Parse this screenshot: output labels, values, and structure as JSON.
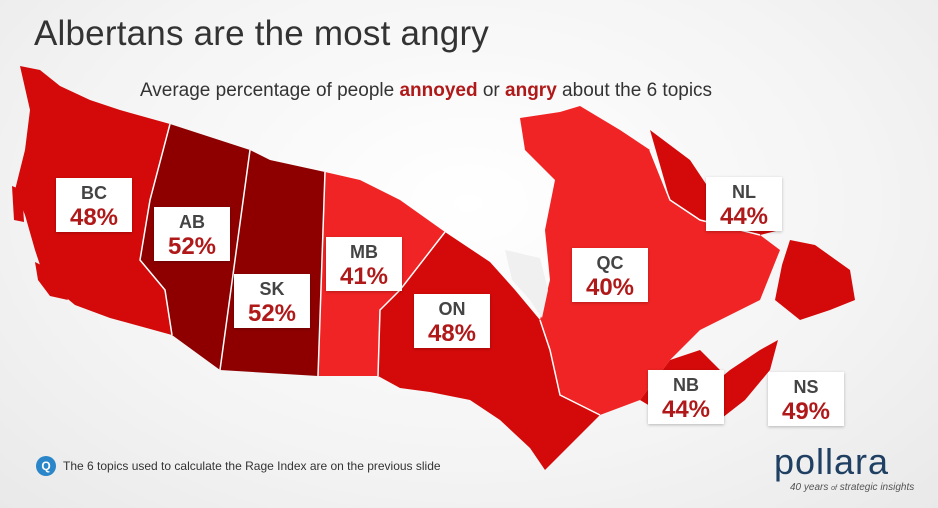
{
  "title": "Albertans are the most angry",
  "subtitle": {
    "prefix": "Average percentage of people ",
    "word1": "annoyed",
    "mid": " or ",
    "word2": "angry",
    "suffix": " about the 6 topics"
  },
  "provinces": [
    {
      "code": "BC",
      "value": "48%"
    },
    {
      "code": "AB",
      "value": "52%"
    },
    {
      "code": "SK",
      "value": "52%"
    },
    {
      "code": "MB",
      "value": "41%"
    },
    {
      "code": "ON",
      "value": "48%"
    },
    {
      "code": "QC",
      "value": "40%"
    },
    {
      "code": "NL",
      "value": "44%"
    },
    {
      "code": "NB",
      "value": "44%"
    },
    {
      "code": "NS",
      "value": "49%"
    }
  ],
  "colors": {
    "accent": "#b01919",
    "darkest": "#8e0000",
    "dark": "#d40a0a",
    "medium": "#e71818",
    "light": "#f02424"
  },
  "footnote": {
    "icon": "Q",
    "text": "The 6 topics used to calculate the Rage Index are on the previous slide"
  },
  "logo": {
    "name": "pollara",
    "tagline_num": "40 years",
    "tagline_small": "of",
    "tagline_rest": "strategic insights"
  }
}
